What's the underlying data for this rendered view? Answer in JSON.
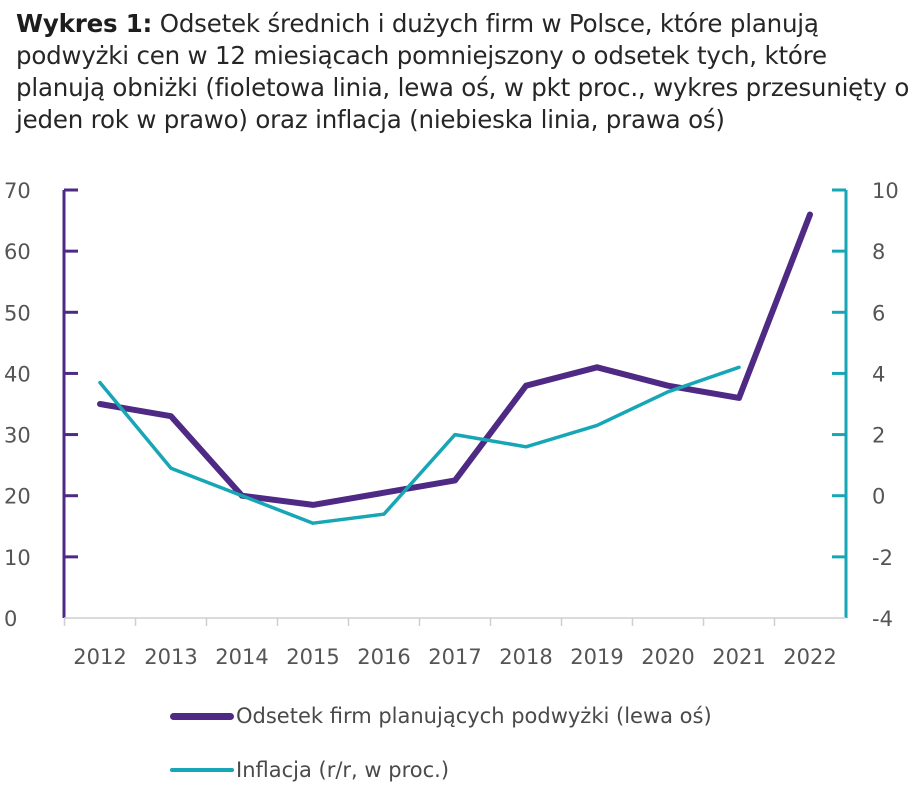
{
  "title": {
    "label": "Wykres 1:",
    "text": "Odsetek średnich i dużych firm w Polsce, które planują podwyżki cen w 12 miesiącach pomniejszony o odsetek tych, które planują obniżki (fioletowa linia, lewa oś, w pkt proc., wykres przesunięty o jeden rok w prawo) oraz inflacja (niebieska linia, prawa oś)"
  },
  "colors": {
    "purple": "#4e2a84",
    "teal": "#16a6b6",
    "axis_tick": "#555555"
  },
  "chart_data": {
    "type": "line",
    "categories": [
      "2012",
      "2013",
      "2014",
      "2015",
      "2016",
      "2017",
      "2018",
      "2019",
      "2020",
      "2021",
      "2022"
    ],
    "left_axis": {
      "ylim": [
        0,
        70
      ],
      "ticks": [
        "0",
        "10",
        "20",
        "30",
        "40",
        "50",
        "60",
        "70"
      ]
    },
    "right_axis": {
      "ylim": [
        -4,
        10
      ],
      "ticks": [
        "-4",
        "-2",
        "0",
        "2",
        "4",
        "6",
        "8",
        "10"
      ]
    },
    "series": [
      {
        "name": "Odsetek firm planujących podwyżki (lewa oś)",
        "axis": "left",
        "color": "#4e2a84",
        "x": [
          "2012",
          "2013",
          "2014",
          "2015",
          "2016",
          "2017",
          "2018",
          "2019",
          "2020",
          "2021",
          "2022"
        ],
        "values": [
          35,
          33,
          20,
          18.5,
          20.5,
          22.5,
          38,
          41,
          38,
          36,
          66
        ]
      },
      {
        "name": "Inflacja (r/r, w proc.)",
        "axis": "right",
        "color": "#16a6b6",
        "x": [
          "2012",
          "2013",
          "2014",
          "2015",
          "2016",
          "2017",
          "2018",
          "2019",
          "2020",
          "2021"
        ],
        "values": [
          3.7,
          0.9,
          0.0,
          -0.9,
          -0.6,
          2.0,
          1.6,
          2.3,
          3.4,
          4.2
        ]
      }
    ],
    "legend": [
      "Odsetek firm planujących podwyżki (lewa oś)",
      "Inflacja (r/r, w proc.)"
    ]
  }
}
